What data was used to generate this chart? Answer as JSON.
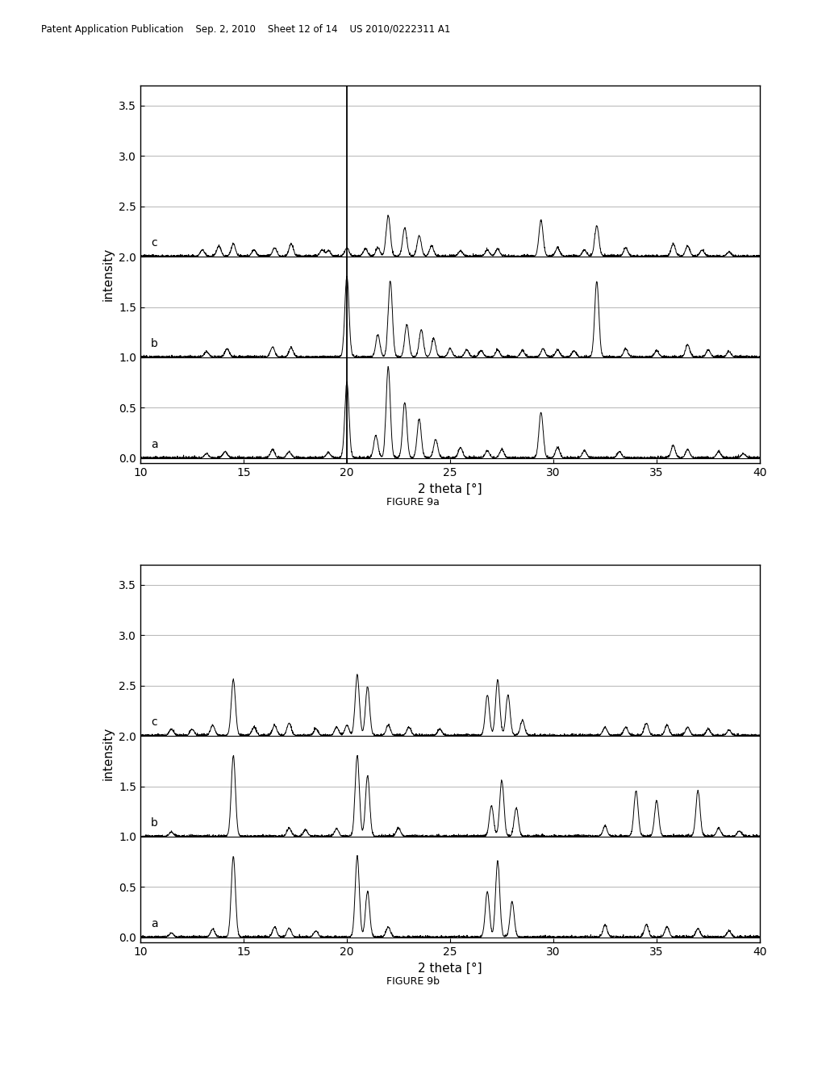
{
  "header_text": "Patent Application Publication    Sep. 2, 2010    Sheet 12 of 14    US 2010/0222311 A1",
  "figure9a_caption": "FIGURE 9a",
  "figure9b_caption": "FIGURE 9b",
  "xlabel": "2 theta [°]",
  "ylabel": "intensity",
  "xlim": [
    10,
    40
  ],
  "ylim": [
    -0.05,
    3.7
  ],
  "yticks": [
    0.0,
    0.5,
    1.0,
    1.5,
    2.0,
    2.5,
    3.0,
    3.5
  ],
  "xticks": [
    10,
    15,
    20,
    25,
    30,
    35,
    40
  ],
  "background_color": "#ffffff",
  "line_color": "#000000",
  "vertical_line_9a_x": 20.0,
  "offsets": {
    "a": 0.0,
    "b": 1.0,
    "c": 2.0
  },
  "peaks_9a_a_pos": [
    13.2,
    14.1,
    16.4,
    17.2,
    19.1,
    20.0,
    21.4,
    22.0,
    22.8,
    23.5,
    24.3,
    25.5,
    26.8,
    27.5,
    29.4,
    30.2,
    31.5,
    33.2,
    35.8,
    36.5,
    38.0,
    39.2
  ],
  "peaks_9a_a_h": [
    0.04,
    0.06,
    0.08,
    0.06,
    0.05,
    0.75,
    0.22,
    0.9,
    0.55,
    0.38,
    0.18,
    0.1,
    0.07,
    0.08,
    0.45,
    0.1,
    0.07,
    0.06,
    0.12,
    0.08,
    0.06,
    0.04
  ],
  "peaks_9a_b_pos": [
    13.2,
    14.2,
    16.4,
    17.3,
    20.0,
    21.5,
    22.1,
    22.9,
    23.6,
    24.2,
    25.0,
    25.8,
    26.5,
    27.3,
    28.5,
    29.5,
    30.2,
    31.0,
    32.1,
    33.5,
    35.0,
    36.5,
    37.5,
    38.5
  ],
  "peaks_9a_b_h": [
    0.05,
    0.08,
    0.1,
    0.09,
    0.8,
    0.22,
    0.75,
    0.32,
    0.27,
    0.18,
    0.08,
    0.07,
    0.06,
    0.07,
    0.06,
    0.08,
    0.07,
    0.06,
    0.75,
    0.08,
    0.06,
    0.12,
    0.07,
    0.05
  ],
  "peaks_9a_c_pos": [
    13.0,
    13.8,
    14.5,
    15.5,
    16.5,
    17.3,
    18.8,
    19.1,
    20.0,
    20.9,
    21.5,
    22.0,
    22.8,
    23.5,
    24.1,
    25.5,
    26.8,
    27.3,
    29.4,
    30.2,
    31.5,
    32.1,
    33.5,
    35.8,
    36.5,
    37.2,
    38.5
  ],
  "peaks_9a_c_h": [
    0.06,
    0.1,
    0.12,
    0.06,
    0.08,
    0.12,
    0.06,
    0.05,
    0.08,
    0.07,
    0.08,
    0.4,
    0.28,
    0.2,
    0.1,
    0.05,
    0.06,
    0.07,
    0.35,
    0.08,
    0.06,
    0.3,
    0.08,
    0.12,
    0.1,
    0.06,
    0.04
  ],
  "peaks_9b_a_pos": [
    11.5,
    13.5,
    14.5,
    16.5,
    17.2,
    18.5,
    20.5,
    21.0,
    22.0,
    26.8,
    27.3,
    28.0,
    32.5,
    34.5,
    35.5,
    37.0,
    38.5
  ],
  "peaks_9b_a_h": [
    0.04,
    0.08,
    0.8,
    0.1,
    0.09,
    0.06,
    0.8,
    0.45,
    0.1,
    0.45,
    0.75,
    0.35,
    0.12,
    0.12,
    0.1,
    0.08,
    0.06
  ],
  "peaks_9b_b_pos": [
    11.5,
    14.5,
    17.2,
    18.0,
    19.5,
    20.5,
    21.0,
    22.5,
    27.0,
    27.5,
    28.2,
    32.5,
    34.0,
    35.0,
    37.0,
    38.0,
    39.0
  ],
  "peaks_9b_b_h": [
    0.04,
    0.8,
    0.08,
    0.06,
    0.07,
    0.8,
    0.6,
    0.08,
    0.3,
    0.55,
    0.28,
    0.1,
    0.45,
    0.35,
    0.45,
    0.08,
    0.05
  ],
  "peaks_9b_c_pos": [
    11.5,
    12.5,
    13.5,
    14.5,
    15.5,
    16.5,
    17.2,
    18.5,
    19.5,
    20.0,
    20.5,
    21.0,
    22.0,
    23.0,
    24.5,
    26.8,
    27.3,
    27.8,
    28.5,
    32.5,
    33.5,
    34.5,
    35.5,
    36.5,
    37.5,
    38.5
  ],
  "peaks_9b_c_h": [
    0.06,
    0.06,
    0.1,
    0.55,
    0.08,
    0.1,
    0.12,
    0.06,
    0.08,
    0.1,
    0.6,
    0.48,
    0.1,
    0.08,
    0.06,
    0.4,
    0.55,
    0.4,
    0.15,
    0.08,
    0.08,
    0.12,
    0.1,
    0.08,
    0.06,
    0.05
  ]
}
